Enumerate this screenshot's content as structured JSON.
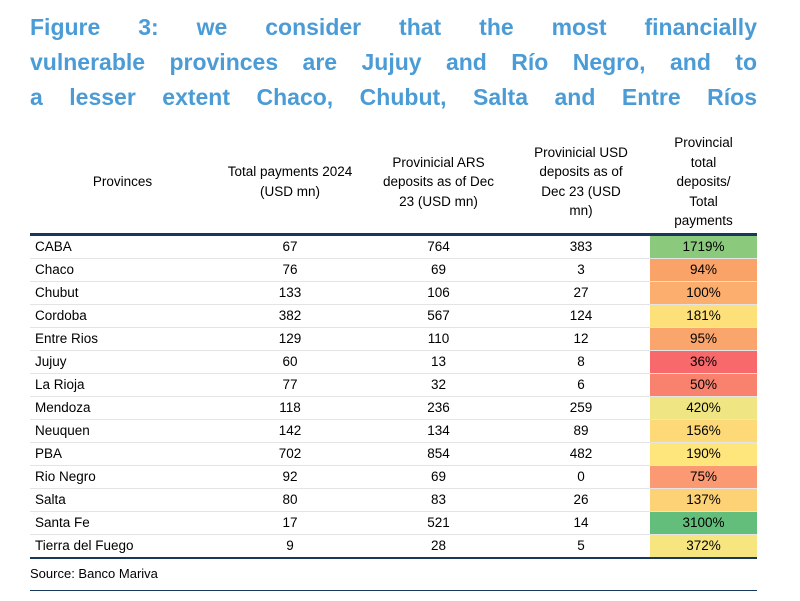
{
  "figure": {
    "title_lines": [
      "Figure 3: we consider that the most financially",
      "vulnerable provinces are Jujuy and Río Negro, and to",
      "a lesser extent Chaco, Chubut, Salta and Entre Ríos"
    ],
    "source": "Source: Banco Mariva"
  },
  "colors": {
    "title_blue": "#4B9CD6",
    "rule_navy": "#17375E"
  },
  "chart_data": {
    "type": "table",
    "title": "Figure 3: we consider that the most financially vulnerable provinces are Jujuy and Río Negro, and to a lesser extent Chaco, Chubut, Salta and Entre Ríos",
    "columns": [
      "Provinces",
      "Total payments 2024 (USD mn)",
      "Provinicial ARS deposits as of Dec 23 (USD mn)",
      "Provinicial USD deposits as of Dec 23 (USD mn)",
      "Provincial total deposits/ Total payments"
    ],
    "rows": [
      {
        "province": "CABA",
        "payments": "67",
        "ars_deposits": "764",
        "usd_deposits": "383",
        "ratio": "1719%",
        "ratio_color": "#8BCA7D"
      },
      {
        "province": "Chaco",
        "payments": "76",
        "ars_deposits": "69",
        "usd_deposits": "3",
        "ratio": "94%",
        "ratio_color": "#FAA369"
      },
      {
        "province": "Chubut",
        "payments": "133",
        "ars_deposits": "106",
        "usd_deposits": "27",
        "ratio": "100%",
        "ratio_color": "#FBAE6E"
      },
      {
        "province": "Cordoba",
        "payments": "382",
        "ars_deposits": "567",
        "usd_deposits": "124",
        "ratio": "181%",
        "ratio_color": "#FDE07A"
      },
      {
        "province": "Entre Rios",
        "payments": "129",
        "ars_deposits": "110",
        "usd_deposits": "12",
        "ratio": "95%",
        "ratio_color": "#FAA56B"
      },
      {
        "province": "Jujuy",
        "payments": "60",
        "ars_deposits": "13",
        "usd_deposits": "8",
        "ratio": "36%",
        "ratio_color": "#F8696B"
      },
      {
        "province": "La Rioja",
        "payments": "77",
        "ars_deposits": "32",
        "usd_deposits": "6",
        "ratio": "50%",
        "ratio_color": "#F9826F"
      },
      {
        "province": "Mendoza",
        "payments": "118",
        "ars_deposits": "236",
        "usd_deposits": "259",
        "ratio": "420%",
        "ratio_color": "#EFE683"
      },
      {
        "province": "Neuquen",
        "payments": "142",
        "ars_deposits": "134",
        "usd_deposits": "89",
        "ratio": "156%",
        "ratio_color": "#FDD978"
      },
      {
        "province": "PBA",
        "payments": "702",
        "ars_deposits": "854",
        "usd_deposits": "482",
        "ratio": "190%",
        "ratio_color": "#FEE57C"
      },
      {
        "province": "Rio Negro",
        "payments": "92",
        "ars_deposits": "69",
        "usd_deposits": "0",
        "ratio": "75%",
        "ratio_color": "#FA9972"
      },
      {
        "province": "Salta",
        "payments": "80",
        "ars_deposits": "83",
        "usd_deposits": "26",
        "ratio": "137%",
        "ratio_color": "#FDD276"
      },
      {
        "province": "Santa Fe",
        "payments": "17",
        "ars_deposits": "521",
        "usd_deposits": "14",
        "ratio": "3100%",
        "ratio_color": "#63BE7B"
      },
      {
        "province": "Tierra del Fuego",
        "payments": "9",
        "ars_deposits": "28",
        "usd_deposits": "5",
        "ratio": "372%",
        "ratio_color": "#F7E580"
      }
    ]
  }
}
